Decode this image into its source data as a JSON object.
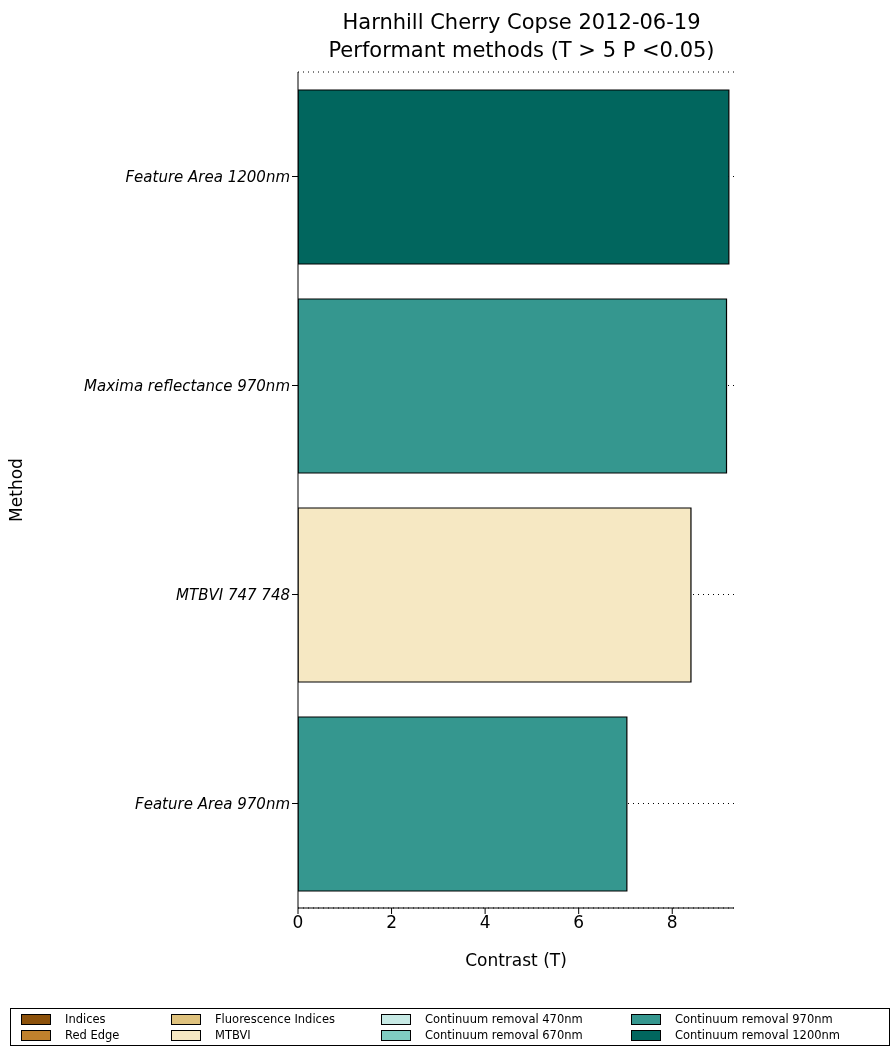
{
  "chart_data": {
    "type": "bar",
    "orientation": "horizontal",
    "stacked": true,
    "title": "Harnhill Cherry Copse 2012-06-19",
    "subtitle": "Performant methods (T > 5 P <0.05)",
    "xlabel": "Contrast (T)",
    "ylabel": "Method",
    "categories": [
      "Feature Area 1200nm",
      "Maxima reflectance 970nm",
      "MTBVI 747 748",
      "Feature Area 970nm"
    ],
    "series": [
      {
        "name": "Indices",
        "color": "#8c510a",
        "values": [
          null,
          null,
          null,
          null
        ]
      },
      {
        "name": "Red Edge",
        "color": "#bf812d",
        "values": [
          null,
          null,
          null,
          null
        ]
      },
      {
        "name": "Fluorescence Indices",
        "color": "#dfc27d",
        "values": [
          null,
          null,
          null,
          null
        ]
      },
      {
        "name": "MTBVI",
        "color": "#f6e8c3",
        "values": [
          null,
          null,
          8.4,
          null
        ]
      },
      {
        "name": "Continuum removal 470nm",
        "color": "#c7eae5",
        "values": [
          null,
          null,
          null,
          null
        ]
      },
      {
        "name": "Continuum removal 670nm",
        "color": "#80cdc1",
        "values": [
          null,
          null,
          null,
          null
        ]
      },
      {
        "name": "Continuum removal 970nm",
        "color": "#35978f",
        "values": [
          null,
          9.16,
          null,
          7.03
        ]
      },
      {
        "name": "Continuum removal 1200nm",
        "color": "#01665e",
        "values": [
          9.21,
          null,
          null,
          null
        ]
      }
    ],
    "xlim": [
      0,
      9.32
    ],
    "xticks": [
      0,
      2,
      4,
      6,
      8
    ],
    "grid": "y",
    "legend": "bottom"
  }
}
